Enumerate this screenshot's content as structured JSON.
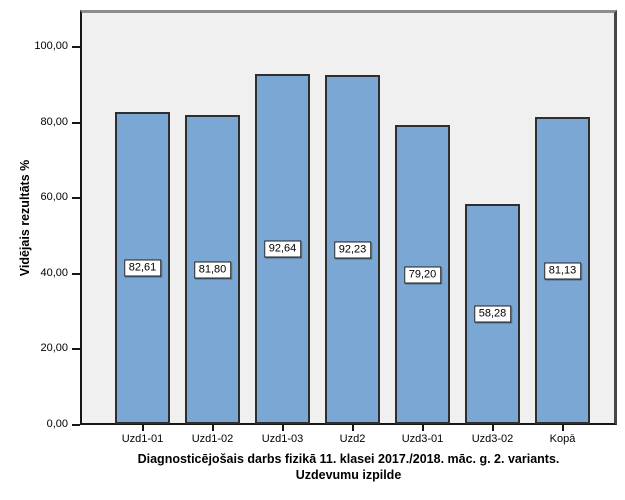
{
  "chart_data": {
    "type": "bar",
    "title": "",
    "categories": [
      "Uzd1-01",
      "Uzd1-02",
      "Uzd1-03",
      "Uzd2",
      "Uzd3-01",
      "Uzd3-02",
      "Kopā"
    ],
    "values": [
      82.61,
      81.8,
      92.64,
      92.23,
      79.2,
      58.28,
      81.13
    ],
    "bar_labels": [
      "82,61",
      "81,80",
      "92,64",
      "92,23",
      "79,20",
      "58,28",
      "81,13"
    ],
    "ylabel": "Vidējais rezultāts %",
    "xlabel_lines": [
      "Diagnosticējošais darbs fizikā 11. klasei 2017./2018. māc. g. 2. variants.",
      "Uzdevumu izpilde"
    ],
    "yticks": [
      {
        "value": 0,
        "label": "0,00"
      },
      {
        "value": 20,
        "label": "20,00"
      },
      {
        "value": 40,
        "label": "40,00"
      },
      {
        "value": 60,
        "label": "60,00"
      },
      {
        "value": 80,
        "label": "80,00"
      },
      {
        "value": 100,
        "label": "100,00"
      }
    ],
    "ylim": [
      0,
      110
    ],
    "grid": false,
    "legend": "none",
    "colors": {
      "bar_fill": "#7aa7d4",
      "bar_border": "#2e2e2e",
      "plot_background": "#f0f0f0",
      "label_box_background": "#ffffff",
      "label_box_border": "#1f1f1f",
      "axis": "#161616",
      "frame_top": "#8d8d8d",
      "frame_right": "#464646"
    }
  }
}
